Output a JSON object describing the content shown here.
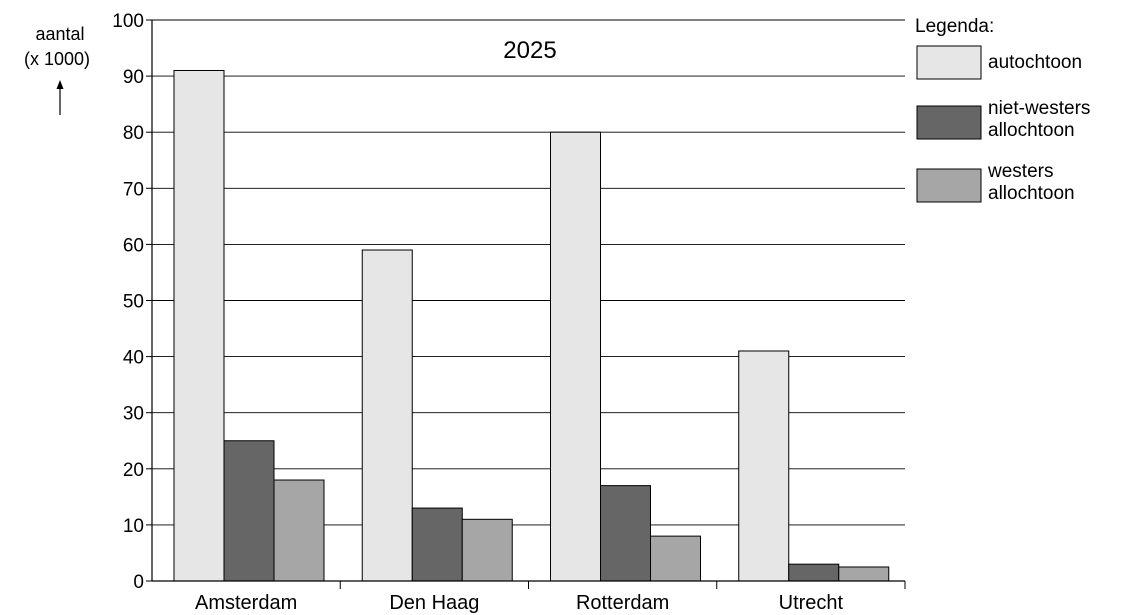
{
  "chart_data": {
    "type": "bar",
    "title": "2025",
    "ylabel_line1": "aantal",
    "ylabel_line2": "(x 1000)",
    "ylabel_arrow": "↑",
    "ylim": [
      0,
      100
    ],
    "yticks": [
      0,
      10,
      20,
      30,
      40,
      50,
      60,
      70,
      80,
      90,
      100
    ],
    "grid": true,
    "categories": [
      "Amsterdam",
      "Den Haag",
      "Rotterdam",
      "Utrecht"
    ],
    "series": [
      {
        "name": "autochtoon",
        "color": "#e6e6e6",
        "values": [
          91,
          59,
          80,
          41
        ]
      },
      {
        "name": "niet-westers allochtoon",
        "color": "#666666",
        "values": [
          25,
          13,
          17,
          3
        ]
      },
      {
        "name": "westers allochtoon",
        "color": "#a6a6a6",
        "values": [
          18,
          11,
          8,
          2.5
        ]
      }
    ],
    "legend": {
      "title": "Legenda:",
      "placement": "right",
      "entries": [
        {
          "line1": "autochtoon",
          "line2": ""
        },
        {
          "line1": "niet-westers",
          "line2": "allochtoon"
        },
        {
          "line1": "westers",
          "line2": "allochtoon"
        }
      ]
    }
  }
}
